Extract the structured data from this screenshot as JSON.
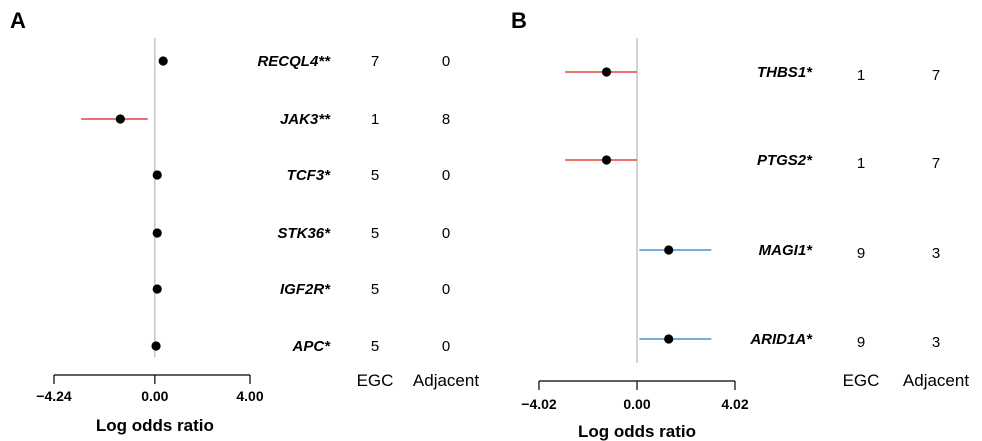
{
  "chart_data": [
    {
      "type": "forest",
      "panel": "A",
      "xlabel": "Log odds ratio",
      "xlim": [
        -4.24,
        4.0
      ],
      "xticks": [
        "−4.24",
        "0.00",
        "4.00"
      ],
      "reference_line": 0,
      "column_headers": [
        "EGC",
        "Adjacent"
      ],
      "rows": [
        {
          "gene": "RECQL4**",
          "estimate": 0.35,
          "ci": null,
          "ci_color": null,
          "egc": "7",
          "adjacent": "0"
        },
        {
          "gene": "JAK3**",
          "estimate": -1.45,
          "ci": [
            -3.1,
            -0.3
          ],
          "ci_color": "#e8413c",
          "egc": "1",
          "adjacent": "8"
        },
        {
          "gene": "TCF3*",
          "estimate": 0.1,
          "ci": null,
          "ci_color": null,
          "egc": "5",
          "adjacent": "0"
        },
        {
          "gene": "STK36*",
          "estimate": 0.1,
          "ci": null,
          "ci_color": null,
          "egc": "5",
          "adjacent": "0"
        },
        {
          "gene": "IGF2R*",
          "estimate": 0.1,
          "ci": null,
          "ci_color": null,
          "egc": "5",
          "adjacent": "0"
        },
        {
          "gene": "APC*",
          "estimate": 0.05,
          "ci": null,
          "ci_color": null,
          "egc": "5",
          "adjacent": "0"
        }
      ]
    },
    {
      "type": "forest",
      "panel": "B",
      "xlabel": "Log odds ratio",
      "xlim": [
        -4.02,
        4.02
      ],
      "xticks": [
        "−4.02",
        "0.00",
        "4.02"
      ],
      "reference_line": 0,
      "column_headers": [
        "EGC",
        "Adjacent"
      ],
      "rows": [
        {
          "gene": "THBS1*",
          "estimate": -1.25,
          "ci": [
            -2.95,
            0.0
          ],
          "ci_color": "#e8413c",
          "egc": "1",
          "adjacent": "7"
        },
        {
          "gene": "PTGS2*",
          "estimate": -1.25,
          "ci": [
            -2.95,
            0.0
          ],
          "ci_color": "#e8413c",
          "egc": "1",
          "adjacent": "7"
        },
        {
          "gene": "MAGI1*",
          "estimate": 1.3,
          "ci": [
            0.1,
            3.05
          ],
          "ci_color": "#4a8fd1",
          "egc": "9",
          "adjacent": "3"
        },
        {
          "gene": "ARID1A*",
          "estimate": 1.3,
          "ci": [
            0.1,
            3.05
          ],
          "ci_color": "#4a8fd1",
          "egc": "9",
          "adjacent": "3"
        }
      ]
    }
  ]
}
